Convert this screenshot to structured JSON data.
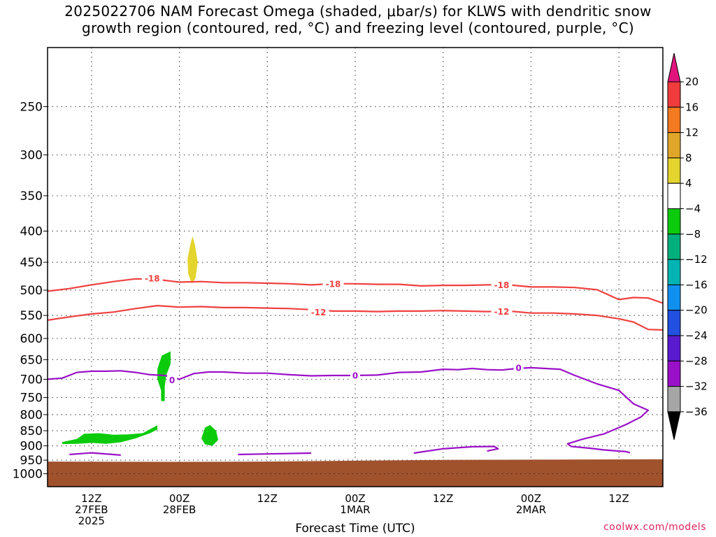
{
  "title": {
    "line1": "2025022706 NAM Forecast Omega (shaded, μbar/s) for KLWS with dendritic snow",
    "line2": "growth region (contoured, red, °C) and freezing level (contoured, purple, °C)"
  },
  "credit": "coolwx.com/models",
  "colors": {
    "dgz_contour": "#f04040",
    "freezing_contour": "#9b10c8",
    "ground": "#a0522d",
    "grid": "#555555"
  },
  "chart_data": {
    "type": "heatmap",
    "xlabel": "Forecast Time (UTC)",
    "ylabel": "",
    "x_unit": "hours since 2025-02-27 06Z",
    "xlim": [
      0,
      84
    ],
    "ylim_hpa": [
      1050,
      200
    ],
    "y_scale": "log-pressure",
    "grid": true,
    "y_ticks": [
      250,
      300,
      350,
      400,
      450,
      500,
      550,
      600,
      650,
      700,
      750,
      800,
      850,
      900,
      950,
      1000
    ],
    "x_ticks": [
      {
        "hour": 6,
        "lines": [
          "12Z",
          "27FEB",
          "2025"
        ]
      },
      {
        "hour": 18,
        "lines": [
          "00Z",
          "28FEB"
        ]
      },
      {
        "hour": 30,
        "lines": [
          "12Z"
        ]
      },
      {
        "hour": 42,
        "lines": [
          "00Z",
          "1MAR"
        ]
      },
      {
        "hour": 54,
        "lines": [
          "12Z"
        ]
      },
      {
        "hour": 66,
        "lines": [
          "00Z",
          "2MAR"
        ]
      },
      {
        "hour": 78,
        "lines": [
          "12Z"
        ]
      }
    ],
    "colorbar": {
      "ticks": [
        20,
        16,
        12,
        8,
        4,
        -4,
        -8,
        -12,
        -16,
        -20,
        -24,
        -28,
        -32,
        -36
      ],
      "colors": [
        "#f03c3c",
        "#f47a22",
        "#e0a62a",
        "#e4d42e",
        "#ffffff",
        "#0ccb0c",
        "#00b07c",
        "#00b4b4",
        "#1090ee",
        "#2250e0",
        "#5a1ad0",
        "#9a10c8",
        "#a6a6a6"
      ],
      "top_arrow_color": "#e0147c",
      "bottom_arrow_color": "#000000"
    },
    "contours": [
      {
        "label": "-18",
        "color": "#f04040",
        "label_positions": [
          [
            14.3,
            478
          ],
          [
            39.0,
            488
          ],
          [
            62.0,
            490
          ]
        ],
        "points": [
          [
            0,
            502
          ],
          [
            3,
            497
          ],
          [
            6,
            490
          ],
          [
            9,
            484
          ],
          [
            12,
            479
          ],
          [
            15,
            480
          ],
          [
            18,
            485
          ],
          [
            21,
            484
          ],
          [
            24,
            486
          ],
          [
            27,
            486
          ],
          [
            30,
            487
          ],
          [
            33,
            488
          ],
          [
            36,
            490
          ],
          [
            39,
            488
          ],
          [
            42,
            488
          ],
          [
            45,
            489
          ],
          [
            48,
            489
          ],
          [
            51,
            492
          ],
          [
            54,
            491
          ],
          [
            57,
            491
          ],
          [
            60,
            490
          ],
          [
            63,
            490
          ],
          [
            66,
            494
          ],
          [
            69,
            494
          ],
          [
            72,
            495
          ],
          [
            75,
            499
          ],
          [
            78,
            518
          ],
          [
            80,
            514
          ],
          [
            82,
            515
          ],
          [
            84,
            525
          ]
        ]
      },
      {
        "label": "-12",
        "color": "#f04040",
        "label_positions": [
          [
            37.0,
            543
          ],
          [
            62.0,
            542
          ]
        ],
        "points": [
          [
            0,
            560
          ],
          [
            3,
            553
          ],
          [
            6,
            547
          ],
          [
            9,
            543
          ],
          [
            12,
            536
          ],
          [
            15,
            530
          ],
          [
            18,
            533
          ],
          [
            21,
            532
          ],
          [
            24,
            534
          ],
          [
            27,
            534
          ],
          [
            30,
            535
          ],
          [
            33,
            536
          ],
          [
            36,
            538
          ],
          [
            39,
            541
          ],
          [
            42,
            541
          ],
          [
            45,
            542
          ],
          [
            48,
            541
          ],
          [
            51,
            541
          ],
          [
            54,
            540
          ],
          [
            57,
            541
          ],
          [
            60,
            542
          ],
          [
            63,
            541
          ],
          [
            66,
            545
          ],
          [
            69,
            545
          ],
          [
            72,
            547
          ],
          [
            75,
            550
          ],
          [
            78,
            557
          ],
          [
            80,
            564
          ],
          [
            82,
            580
          ],
          [
            84,
            581
          ]
        ]
      },
      {
        "label": "0",
        "color": "#9b10c8",
        "label_positions": [
          [
            17.0,
            702
          ],
          [
            42.0,
            690
          ],
          [
            64.3,
            670
          ]
        ],
        "points": [
          [
            0,
            700
          ],
          [
            2,
            697
          ],
          [
            4,
            682
          ],
          [
            6,
            679
          ],
          [
            8,
            679
          ],
          [
            10,
            678
          ],
          [
            12,
            682
          ],
          [
            14,
            688
          ],
          [
            16,
            690
          ],
          [
            18,
            700
          ],
          [
            20,
            685
          ],
          [
            22,
            681
          ],
          [
            24,
            681
          ],
          [
            27,
            684
          ],
          [
            30,
            684
          ],
          [
            33,
            688
          ],
          [
            36,
            691
          ],
          [
            39,
            690
          ],
          [
            42,
            690
          ],
          [
            45,
            689
          ],
          [
            48,
            682
          ],
          [
            51,
            681
          ],
          [
            54,
            674
          ],
          [
            56,
            675
          ],
          [
            58,
            672
          ],
          [
            60,
            675
          ],
          [
            62,
            676
          ],
          [
            64,
            672
          ],
          [
            66,
            670
          ],
          [
            68,
            672
          ],
          [
            70,
            674
          ],
          [
            72,
            690
          ],
          [
            75,
            712
          ],
          [
            78,
            730
          ],
          [
            80,
            768
          ],
          [
            82,
            787
          ],
          [
            81,
            807
          ],
          [
            79,
            830
          ],
          [
            76,
            860
          ],
          [
            73,
            878
          ],
          [
            71,
            893
          ],
          [
            71.5,
            902
          ],
          [
            74,
            908
          ],
          [
            76,
            914
          ],
          [
            79,
            920
          ],
          [
            79.5,
            924
          ]
        ]
      },
      {
        "label": "",
        "color": "#9b10c8",
        "label_positions": [],
        "points": [
          [
            3,
            930
          ],
          [
            6,
            924
          ],
          [
            10,
            932
          ]
        ]
      },
      {
        "label": "",
        "color": "#9b10c8",
        "label_positions": [],
        "points": [
          [
            26,
            930
          ],
          [
            30,
            928
          ],
          [
            36,
            925
          ]
        ]
      },
      {
        "label": "",
        "color": "#9b10c8",
        "label_positions": [],
        "points": [
          [
            50,
            925
          ],
          [
            54,
            910
          ],
          [
            58,
            903
          ],
          [
            61,
            902
          ],
          [
            61.5,
            910
          ],
          [
            60,
            918
          ]
        ]
      }
    ],
    "shaded_regions": [
      {
        "band": "-8 to -4",
        "color": "#0ccb0c",
        "points": [
          [
            2,
            887
          ],
          [
            4,
            877
          ],
          [
            5,
            860
          ],
          [
            7,
            858
          ],
          [
            9,
            863
          ],
          [
            11,
            862
          ],
          [
            13,
            858
          ],
          [
            14,
            845
          ],
          [
            15,
            833
          ],
          [
            15,
            846
          ],
          [
            14,
            858
          ],
          [
            12,
            875
          ],
          [
            10,
            888
          ],
          [
            8,
            893
          ],
          [
            6,
            890
          ],
          [
            4,
            893
          ],
          [
            2,
            894
          ]
        ]
      },
      {
        "band": "-8 to -4",
        "color": "#0ccb0c",
        "points": [
          [
            15.5,
            730
          ],
          [
            15.0,
            700
          ],
          [
            15.0,
            673
          ],
          [
            15.6,
            640
          ],
          [
            16.8,
            630
          ],
          [
            16.8,
            660
          ],
          [
            16.2,
            690
          ],
          [
            16.0,
            720
          ],
          [
            16.0,
            760
          ],
          [
            15.5,
            760
          ]
        ]
      },
      {
        "band": "-8 to -4",
        "color": "#0ccb0c",
        "points": [
          [
            21.0,
            875
          ],
          [
            21.5,
            840
          ],
          [
            22.2,
            832
          ],
          [
            23.0,
            850
          ],
          [
            23.3,
            880
          ],
          [
            22.5,
            900
          ],
          [
            21.5,
            895
          ]
        ]
      },
      {
        "band": "4 to 8",
        "color": "#e4d42e",
        "points": [
          [
            19.5,
            420
          ],
          [
            19.8,
            408
          ],
          [
            20.1,
            420
          ],
          [
            20.5,
            450
          ],
          [
            20.2,
            478
          ],
          [
            19.7,
            488
          ],
          [
            19.2,
            470
          ],
          [
            19.1,
            445
          ]
        ]
      }
    ],
    "ground_top_hpa": [
      [
        0,
        955
      ],
      [
        18,
        956
      ],
      [
        30,
        955
      ],
      [
        54,
        949
      ],
      [
        84,
        947
      ]
    ]
  }
}
